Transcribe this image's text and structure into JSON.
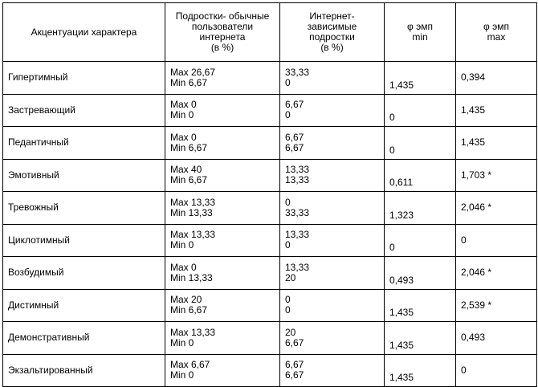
{
  "headers": [
    "Акцентуации характера",
    "Подростки- обычные пользователи интернета (в %)",
    "Интернет- зависимые подростки (в %)",
    "φ эмп min",
    "φ эмп max"
  ],
  "header_lines": [
    [
      "Акцентуации характера"
    ],
    [
      "Подростки- обычные",
      "пользователи",
      "интернета",
      "(в %)"
    ],
    [
      "Интернет-",
      "зависимые",
      "подростки",
      "(в %)"
    ],
    [
      "φ эмп",
      "min"
    ],
    [
      "φ эмп",
      "max"
    ]
  ],
  "rows": [
    {
      "name": "Гипертимный",
      "ordinary": [
        "Max 26,67",
        "Min 6,67"
      ],
      "dependent": [
        "33,33",
        "0"
      ],
      "phi_min": "1,435",
      "phi_max": "0,394"
    },
    {
      "name": "Застревающий",
      "ordinary": [
        "Max 0",
        "Min 0"
      ],
      "dependent": [
        "6,67",
        "0"
      ],
      "phi_min": "0",
      "phi_max": "1,435"
    },
    {
      "name": "Педантичный",
      "ordinary": [
        "Max 0",
        "Min 6,67"
      ],
      "dependent": [
        "6,67",
        "6,67"
      ],
      "phi_min": "0",
      "phi_max": "1,435"
    },
    {
      "name": "Эмотивный",
      "ordinary": [
        "Max 40",
        "Min 6,67"
      ],
      "dependent": [
        "13,33",
        "13,33"
      ],
      "phi_min": "0,611",
      "phi_max": "1,703 *"
    },
    {
      "name": "Тревожный",
      "ordinary": [
        "Max 13,33",
        "Min 13,33"
      ],
      "dependent": [
        "0",
        "33,33"
      ],
      "phi_min": "1,323",
      "phi_max": "2,046 *"
    },
    {
      "name": "Циклотимный",
      "ordinary": [
        "Max 13,33",
        "Min 0"
      ],
      "dependent": [
        "13,33",
        "0"
      ],
      "phi_min": "0",
      "phi_max": "0"
    },
    {
      "name": "Возбудимый",
      "ordinary": [
        "Max 0",
        "Min 13,33"
      ],
      "dependent": [
        "13,33",
        "20"
      ],
      "phi_min": "0,493",
      "phi_max": "2,046 *"
    },
    {
      "name": "Дистимный",
      "ordinary": [
        "Max 20",
        "Min 6,67"
      ],
      "dependent": [
        "0",
        "0"
      ],
      "phi_min": "1,435",
      "phi_max": "2,539 *"
    },
    {
      "name": "Демонстративный",
      "ordinary": [
        "Max 13,33",
        "Min 0"
      ],
      "dependent": [
        "20",
        "6,67"
      ],
      "phi_min": "1,435",
      "phi_max": "0,493"
    },
    {
      "name": "Экзальтированный",
      "ordinary": [
        "Max 6,67",
        "Min 0"
      ],
      "dependent": [
        "6,67",
        "6,67"
      ],
      "phi_min": "1,435",
      "phi_max": "0"
    }
  ]
}
